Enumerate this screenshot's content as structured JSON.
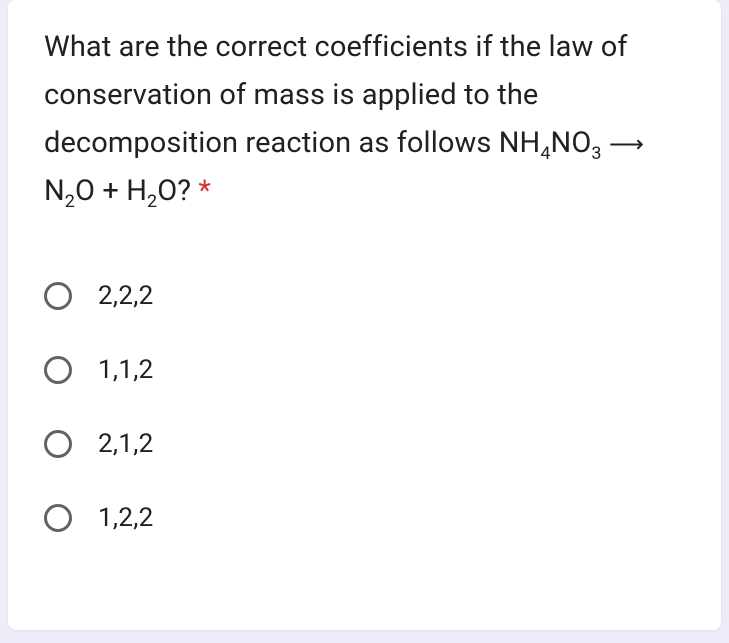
{
  "question": {
    "text_prefix": "What are the correct coefficients if the law of conservation of mass is applied to the decomposition reaction as follows NH",
    "sub1": "4",
    "text_mid1": "NO",
    "sub2": "3",
    "text_mid2": " ",
    "arrow": "⟶",
    "text_mid3": " N",
    "sub3": "2",
    "text_mid4": "O + H",
    "sub4": "2",
    "text_suffix": "O?",
    "required_mark": "*"
  },
  "options": [
    {
      "label": "2,2,2"
    },
    {
      "label": "1,1,2"
    },
    {
      "label": "2,1,2"
    },
    {
      "label": "1,2,2"
    }
  ],
  "colors": {
    "card_bg": "#ffffff",
    "page_bg": "#f0ebf8",
    "text": "#202124",
    "radio_border": "#5f6368",
    "required": "#d93025"
  }
}
